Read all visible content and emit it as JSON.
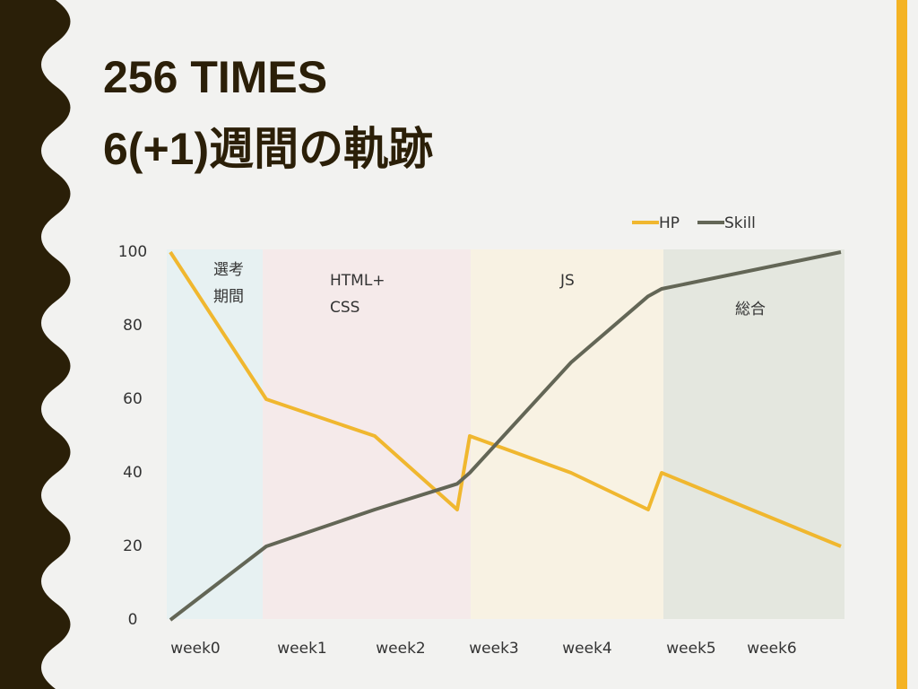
{
  "chart_data": {
    "type": "line",
    "title": "256 TIMES",
    "subtitle": "6(+1)週間の軌跡",
    "categories": [
      "week0",
      "week1",
      "week2",
      null,
      "week3",
      "week4",
      null,
      "week5",
      "week6"
    ],
    "series": [
      {
        "name": "HP",
        "color": "#f0b72f",
        "values": [
          100,
          60,
          50,
          30,
          50,
          40,
          30,
          40,
          20
        ]
      },
      {
        "name": "Skill",
        "color": "#636656",
        "values": [
          0,
          20,
          30,
          37,
          40,
          70,
          88,
          90,
          100
        ]
      }
    ],
    "ylim": [
      0,
      100
    ],
    "yticks": [
      0,
      20,
      40,
      60,
      80,
      100
    ],
    "legend": "top-right",
    "annotations": [
      {
        "lines": [
          "選考",
          "期間"
        ],
        "color": "#e7f1f2"
      },
      {
        "lines": [
          "HTML+",
          "CSS"
        ],
        "color": "#f5eaea"
      },
      {
        "lines": [
          "JS"
        ],
        "color": "#f8f2e3"
      },
      {
        "lines": [
          "総合"
        ],
        "color": "#e4e7df"
      }
    ]
  }
}
